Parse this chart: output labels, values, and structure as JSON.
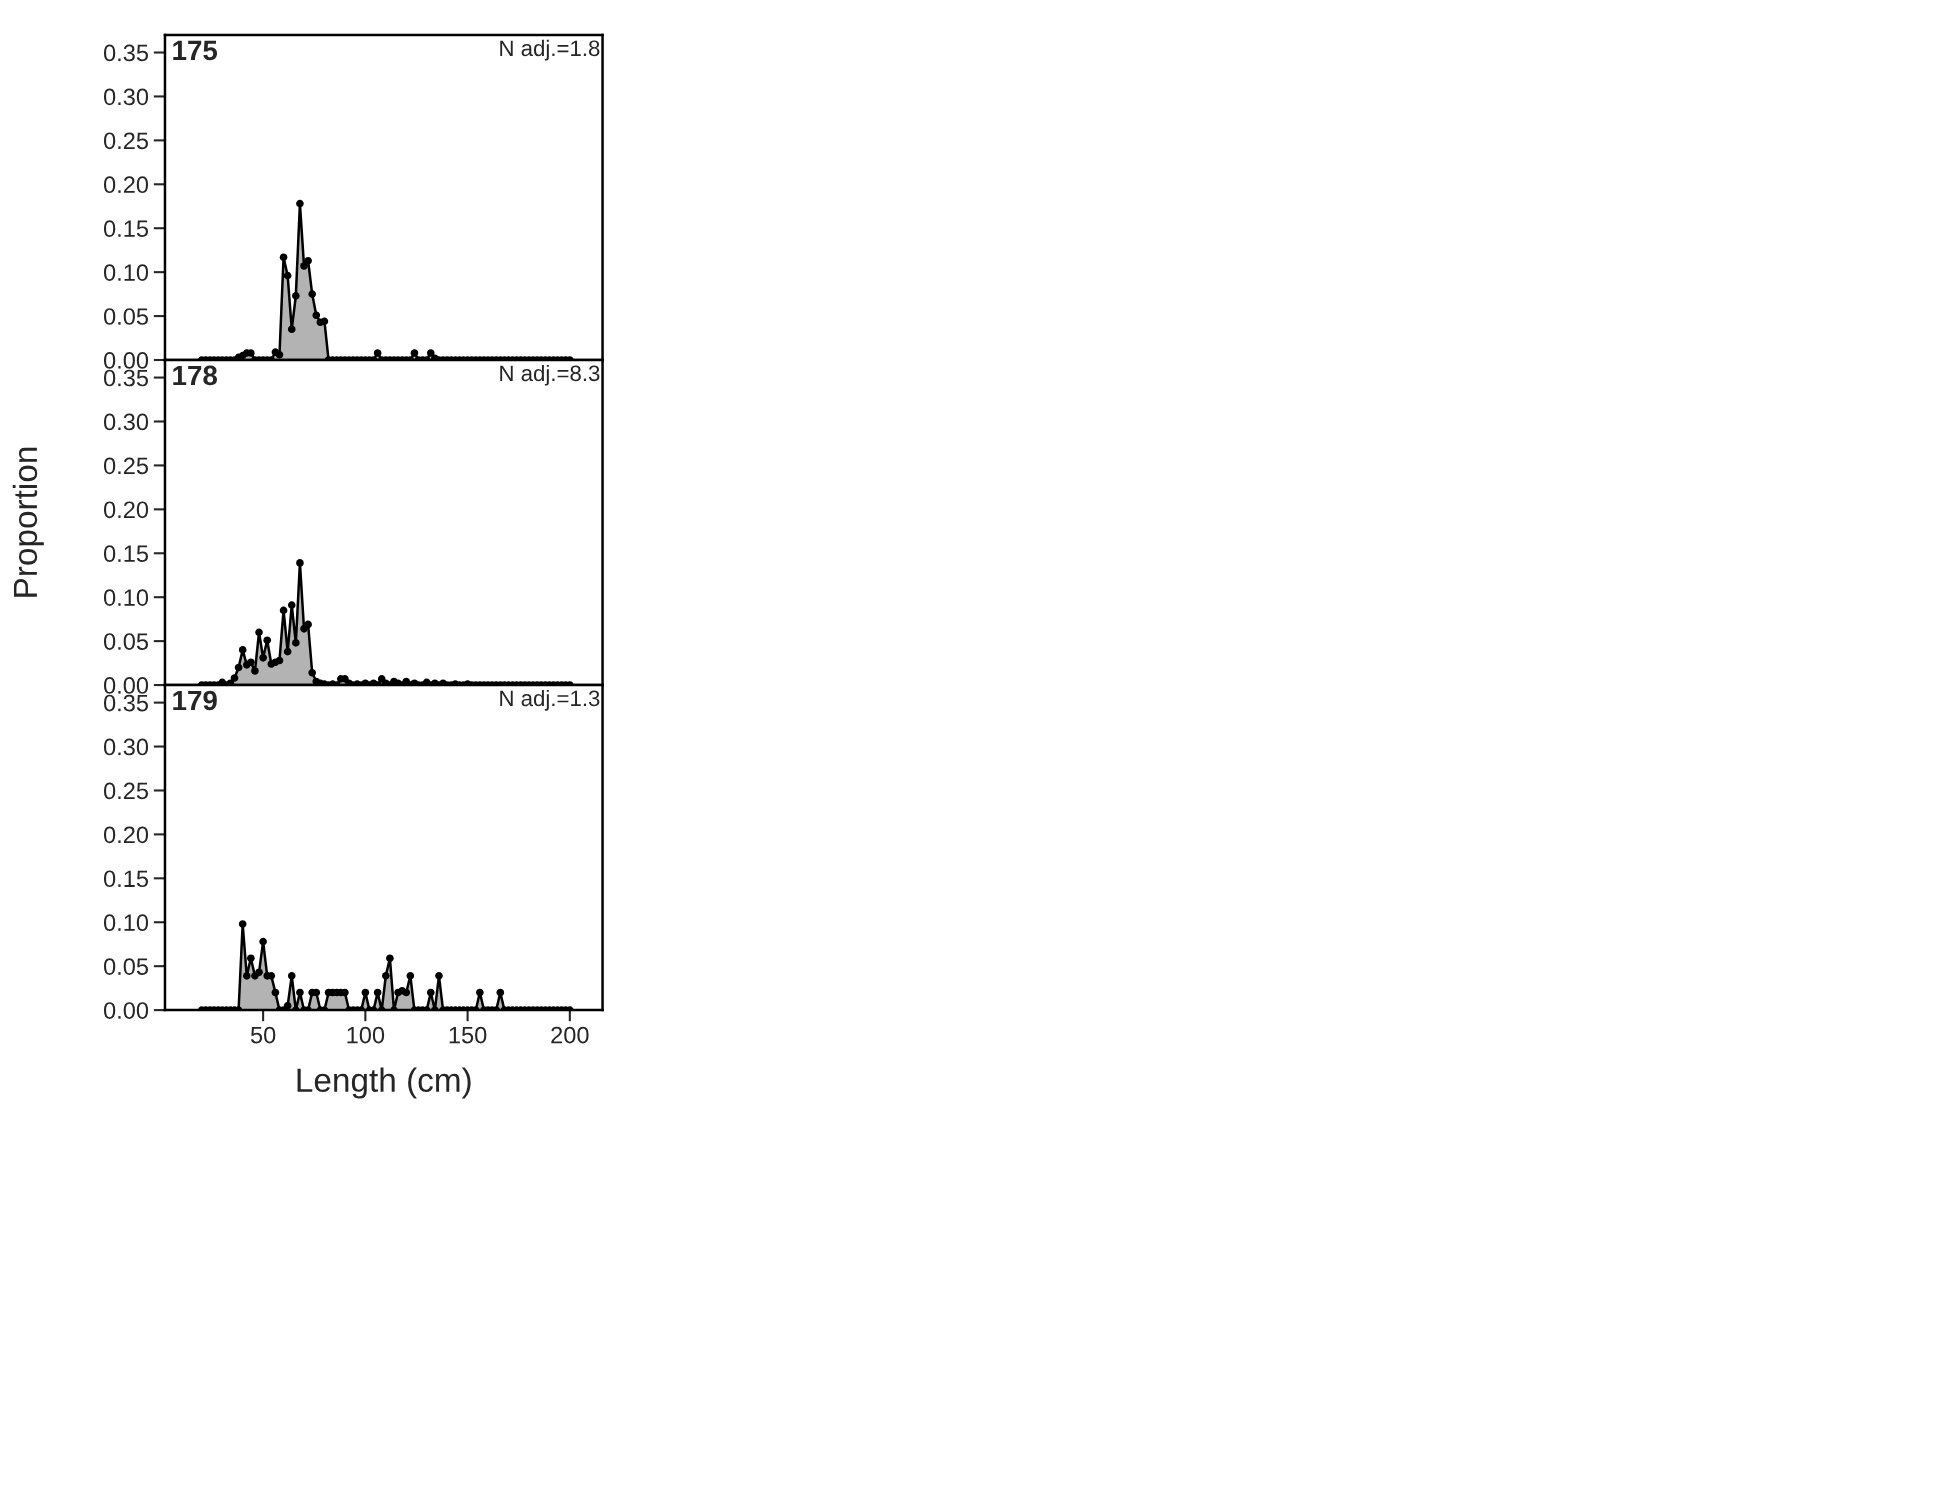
{
  "chart_data": [
    {
      "type": "area",
      "title": "175",
      "annotations": [
        "N adj.=1.8"
      ],
      "marker": "circle",
      "grid": false,
      "tick_labels": "y",
      "xlim": [
        2,
        216
      ],
      "xticks": [
        50,
        100,
        150,
        200
      ],
      "ylim": [
        0,
        0.37
      ],
      "yticks": [
        {
          "value": 0,
          "label": "0.00"
        },
        {
          "value": 0.05,
          "label": "0.05"
        },
        {
          "value": 0.1,
          "label": "0.10"
        },
        {
          "value": 0.15,
          "label": "0.15"
        },
        {
          "value": 0.2,
          "label": "0.20"
        },
        {
          "value": 0.25,
          "label": "0.25"
        },
        {
          "value": 0.3,
          "label": "0.30"
        },
        {
          "value": 0.35,
          "label": "0.35"
        }
      ],
      "x": [
        20,
        22,
        24,
        26,
        28,
        30,
        32,
        34,
        36,
        38,
        40,
        42,
        44,
        46,
        48,
        50,
        52,
        54,
        56,
        58,
        60,
        62,
        64,
        66,
        68,
        70,
        72,
        74,
        76,
        78,
        80,
        82,
        84,
        86,
        88,
        90,
        92,
        94,
        96,
        98,
        100,
        102,
        104,
        106,
        108,
        110,
        112,
        114,
        116,
        118,
        120,
        122,
        124,
        126,
        128,
        130,
        132,
        134,
        136,
        138,
        140,
        142,
        144,
        146,
        148,
        150,
        152,
        154,
        156,
        158,
        160,
        162,
        164,
        166,
        168,
        170,
        172,
        174,
        176,
        178,
        180,
        182,
        184,
        186,
        188,
        190,
        192,
        194,
        196,
        198,
        200
      ],
      "series": [
        {
          "color": "#b3b3b3",
          "values": [
            0,
            0,
            0,
            0,
            0,
            0,
            0,
            0,
            0,
            0.003,
            0.005,
            0.008,
            0.008,
            0,
            0,
            0,
            0,
            0,
            0.009,
            0.006,
            0.117,
            0.096,
            0.035,
            0.073,
            0.178,
            0.107,
            0.113,
            0.075,
            0.051,
            0.043,
            0.044,
            0,
            0,
            0,
            0,
            0,
            0,
            0,
            0,
            0,
            0,
            0,
            0,
            0.008,
            0,
            0,
            0,
            0,
            0,
            0,
            0,
            0,
            0.008,
            0,
            0,
            0,
            0.008,
            0.002,
            0,
            0,
            0,
            0,
            0,
            0,
            0,
            0,
            0,
            0,
            0,
            0,
            0,
            0,
            0,
            0,
            0,
            0,
            0,
            0,
            0,
            0,
            0,
            0,
            0,
            0,
            0,
            0,
            0,
            0,
            0,
            0,
            0
          ]
        }
      ]
    },
    {
      "type": "area",
      "title": "178",
      "ylabel": "Proportion",
      "annotations": [
        "N adj.=8.3"
      ],
      "marker": "circle",
      "grid": false,
      "tick_labels": "y",
      "xlim": [
        2,
        216
      ],
      "xticks": [
        50,
        100,
        150,
        200
      ],
      "ylim": [
        0,
        0.37
      ],
      "yticks": [
        {
          "value": 0,
          "label": "0.00"
        },
        {
          "value": 0.05,
          "label": "0.05"
        },
        {
          "value": 0.1,
          "label": "0.10"
        },
        {
          "value": 0.15,
          "label": "0.15"
        },
        {
          "value": 0.2,
          "label": "0.20"
        },
        {
          "value": 0.25,
          "label": "0.25"
        },
        {
          "value": 0.3,
          "label": "0.30"
        },
        {
          "value": 0.35,
          "label": "0.35"
        }
      ],
      "x": [
        20,
        22,
        24,
        26,
        28,
        30,
        32,
        34,
        36,
        38,
        40,
        42,
        44,
        46,
        48,
        50,
        52,
        54,
        56,
        58,
        60,
        62,
        64,
        66,
        68,
        70,
        72,
        74,
        76,
        78,
        80,
        82,
        84,
        86,
        88,
        90,
        92,
        94,
        96,
        98,
        100,
        102,
        104,
        106,
        108,
        110,
        112,
        114,
        116,
        118,
        120,
        122,
        124,
        126,
        128,
        130,
        132,
        134,
        136,
        138,
        140,
        142,
        144,
        146,
        148,
        150,
        152,
        154,
        156,
        158,
        160,
        162,
        164,
        166,
        168,
        170,
        172,
        174,
        176,
        178,
        180,
        182,
        184,
        186,
        188,
        190,
        192,
        194,
        196,
        198,
        200
      ],
      "series": [
        {
          "color": "#b3b3b3",
          "values": [
            0,
            0,
            0,
            0,
            0,
            0.003,
            0,
            0.002,
            0.008,
            0.02,
            0.04,
            0.023,
            0.026,
            0.016,
            0.06,
            0.031,
            0.051,
            0.024,
            0.026,
            0.028,
            0.085,
            0.038,
            0.091,
            0.048,
            0.139,
            0.064,
            0.069,
            0.014,
            0.004,
            0.002,
            0.001,
            0,
            0.001,
            0,
            0.007,
            0.007,
            0.002,
            0,
            0.001,
            0,
            0.002,
            0,
            0.002,
            0,
            0.007,
            0.002,
            0,
            0.004,
            0.002,
            0,
            0.004,
            0,
            0.002,
            0,
            0,
            0.003,
            0,
            0.002,
            0,
            0.002,
            0,
            0,
            0.001,
            0,
            0,
            0.001,
            0,
            0,
            0,
            0,
            0,
            0,
            0,
            0,
            0,
            0,
            0,
            0,
            0,
            0,
            0,
            0,
            0,
            0,
            0,
            0,
            0,
            0,
            0,
            0,
            0
          ]
        }
      ]
    },
    {
      "type": "area",
      "title": "179",
      "xlabel": "Length (cm)",
      "annotations": [
        "N adj.=1.3"
      ],
      "marker": "circle",
      "grid": false,
      "xlim": [
        2,
        216
      ],
      "xticks": [
        50,
        100,
        150,
        200
      ],
      "ylim": [
        0,
        0.37
      ],
      "yticks": [
        {
          "value": 0,
          "label": "0.00"
        },
        {
          "value": 0.05,
          "label": "0.05"
        },
        {
          "value": 0.1,
          "label": "0.10"
        },
        {
          "value": 0.15,
          "label": "0.15"
        },
        {
          "value": 0.2,
          "label": "0.20"
        },
        {
          "value": 0.25,
          "label": "0.25"
        },
        {
          "value": 0.3,
          "label": "0.30"
        },
        {
          "value": 0.35,
          "label": "0.35"
        }
      ],
      "x": [
        20,
        22,
        24,
        26,
        28,
        30,
        32,
        34,
        36,
        38,
        40,
        42,
        44,
        46,
        48,
        50,
        52,
        54,
        56,
        58,
        60,
        62,
        64,
        66,
        68,
        70,
        72,
        74,
        76,
        78,
        80,
        82,
        84,
        86,
        88,
        90,
        92,
        94,
        96,
        98,
        100,
        102,
        104,
        106,
        108,
        110,
        112,
        114,
        116,
        118,
        120,
        122,
        124,
        126,
        128,
        130,
        132,
        134,
        136,
        138,
        140,
        142,
        144,
        146,
        148,
        150,
        152,
        154,
        156,
        158,
        160,
        162,
        164,
        166,
        168,
        170,
        172,
        174,
        176,
        178,
        180,
        182,
        184,
        186,
        188,
        190,
        192,
        194,
        196,
        198,
        200
      ],
      "series": [
        {
          "color": "#b3b3b3",
          "values": [
            0,
            0,
            0,
            0,
            0,
            0,
            0,
            0,
            0,
            0,
            0.098,
            0.039,
            0.059,
            0.039,
            0.043,
            0.078,
            0.039,
            0.039,
            0.02,
            0,
            0,
            0.005,
            0.039,
            0,
            0.02,
            0,
            0,
            0.02,
            0.02,
            0,
            0,
            0.02,
            0.02,
            0.02,
            0.02,
            0.02,
            0,
            0,
            0,
            0,
            0.02,
            0,
            0,
            0.02,
            0,
            0.039,
            0.059,
            0,
            0.02,
            0.022,
            0.02,
            0.039,
            0,
            0,
            0,
            0,
            0.02,
            0,
            0.039,
            0,
            0,
            0,
            0,
            0,
            0,
            0,
            0,
            0,
            0.02,
            0,
            0,
            0,
            0,
            0.02,
            0,
            0,
            0,
            0,
            0,
            0,
            0,
            0,
            0,
            0,
            0,
            0,
            0,
            0,
            0,
            0,
            0
          ]
        }
      ]
    }
  ]
}
